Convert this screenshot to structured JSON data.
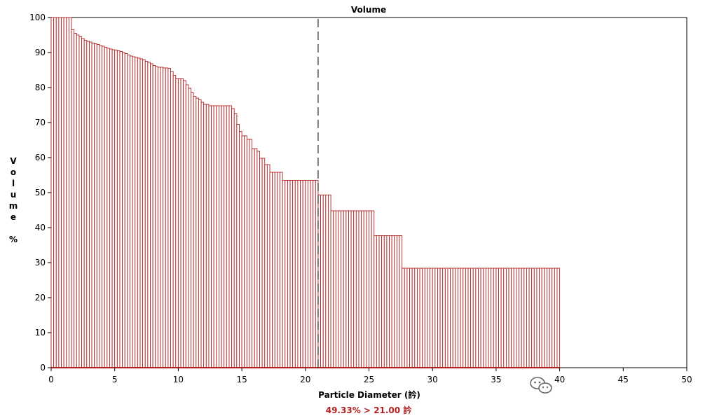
{
  "chart_data": {
    "type": "bar",
    "title": "Volume",
    "xlabel": "Particle Diameter (訡)",
    "ylabel": "Volume %",
    "ylabel_chars": [
      "V",
      "o",
      "l",
      "u",
      "m",
      "e",
      "",
      "%"
    ],
    "xlim": [
      0,
      50
    ],
    "ylim": [
      0,
      100
    ],
    "x_ticks": [
      0,
      5,
      10,
      15,
      20,
      25,
      30,
      35,
      40,
      45,
      50
    ],
    "y_ticks": [
      0,
      10,
      20,
      30,
      40,
      50,
      60,
      70,
      80,
      90,
      100
    ],
    "grid": false,
    "bar_color": "#b22222",
    "marker_color": "#000000",
    "marker_x": 21.0,
    "readout": "49.33% > 21.00 訡",
    "readout_color": "#b22222",
    "steps": [
      [
        0,
        100
      ],
      [
        1.6,
        96.5
      ],
      [
        1.8,
        95.5
      ],
      [
        2.0,
        95
      ],
      [
        2.2,
        94.5
      ],
      [
        2.4,
        94
      ],
      [
        2.6,
        93.5
      ],
      [
        2.8,
        93.2
      ],
      [
        3.0,
        93
      ],
      [
        3.2,
        92.7
      ],
      [
        3.4,
        92.5
      ],
      [
        3.6,
        92.3
      ],
      [
        3.8,
        92
      ],
      [
        4.0,
        91.8
      ],
      [
        4.2,
        91.5
      ],
      [
        4.4,
        91.2
      ],
      [
        4.6,
        91
      ],
      [
        4.8,
        90.8
      ],
      [
        5.0,
        90.7
      ],
      [
        5.2,
        90.5
      ],
      [
        5.4,
        90.3
      ],
      [
        5.6,
        90
      ],
      [
        5.8,
        89.7
      ],
      [
        6.0,
        89.3
      ],
      [
        6.2,
        89
      ],
      [
        6.4,
        88.8
      ],
      [
        6.6,
        88.6
      ],
      [
        6.8,
        88.4
      ],
      [
        7.0,
        88.2
      ],
      [
        7.2,
        87.9
      ],
      [
        7.4,
        87.5
      ],
      [
        7.6,
        87.2
      ],
      [
        7.8,
        86.8
      ],
      [
        8.0,
        86.3
      ],
      [
        8.2,
        86
      ],
      [
        8.4,
        85.8
      ],
      [
        8.8,
        85.6
      ],
      [
        9.2,
        85.5
      ],
      [
        9.4,
        84.5
      ],
      [
        9.6,
        83.5
      ],
      [
        9.8,
        82.5
      ],
      [
        10.4,
        82
      ],
      [
        10.6,
        80.8
      ],
      [
        10.8,
        79.8
      ],
      [
        11.0,
        78.5
      ],
      [
        11.2,
        77.5
      ],
      [
        11.4,
        77
      ],
      [
        11.6,
        76.5
      ],
      [
        11.8,
        75.8
      ],
      [
        12.0,
        75.2
      ],
      [
        12.4,
        74.8
      ],
      [
        14.2,
        74
      ],
      [
        14.4,
        72.5
      ],
      [
        14.6,
        69.5
      ],
      [
        14.8,
        67.5
      ],
      [
        15.0,
        66.2
      ],
      [
        15.4,
        65.2
      ],
      [
        15.8,
        62.5
      ],
      [
        16.2,
        61.8
      ],
      [
        16.4,
        59.8
      ],
      [
        16.8,
        58
      ],
      [
        17.2,
        55.8
      ],
      [
        18.2,
        53.5
      ],
      [
        21.0,
        49.33
      ],
      [
        21.9,
        44.8
      ],
      [
        25.4,
        37.7
      ],
      [
        27.6,
        28.4
      ],
      [
        40.0,
        0
      ]
    ]
  }
}
